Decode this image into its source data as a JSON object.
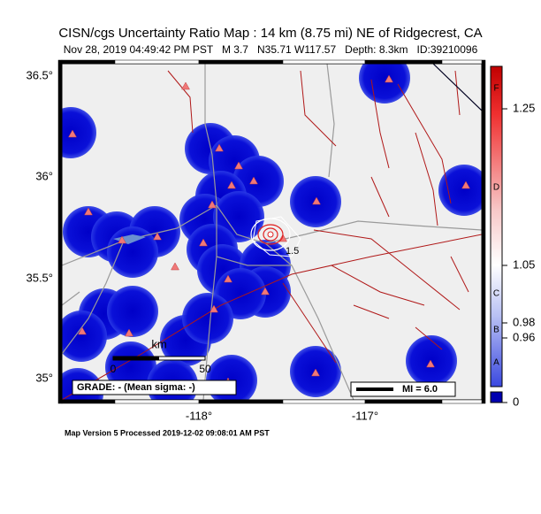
{
  "header": {
    "title": "CISN/cgs Uncertainty Ratio Map : 14 km (8.75 mi) NE of Ridgecrest, CA",
    "subtitle": "Nov 28, 2019 04:49:42 PM PST   M 3.7   N35.71 W117.57   Depth: 8.3km   ID:39210096"
  },
  "map": {
    "lat_labels": [
      "36.5°",
      "36°",
      "35.5°",
      "35°"
    ],
    "lon_labels": [
      "-118°",
      "-117°"
    ],
    "contour_label": "1.5",
    "scale": {
      "unit": "km",
      "start": "0",
      "end": "50"
    },
    "grade": "GRADE: - (Mean sigma: -)",
    "mi_legend": "MI = 6.0"
  },
  "colorbar": {
    "letters": [
      "F",
      "D",
      "C",
      "B",
      "A"
    ],
    "ticks": [
      "1.25",
      "1.05",
      "0.98",
      "0.96",
      "0"
    ]
  },
  "footer": "Map Version 5 Processed 2019-12-02 09:08:01 AM PST"
}
